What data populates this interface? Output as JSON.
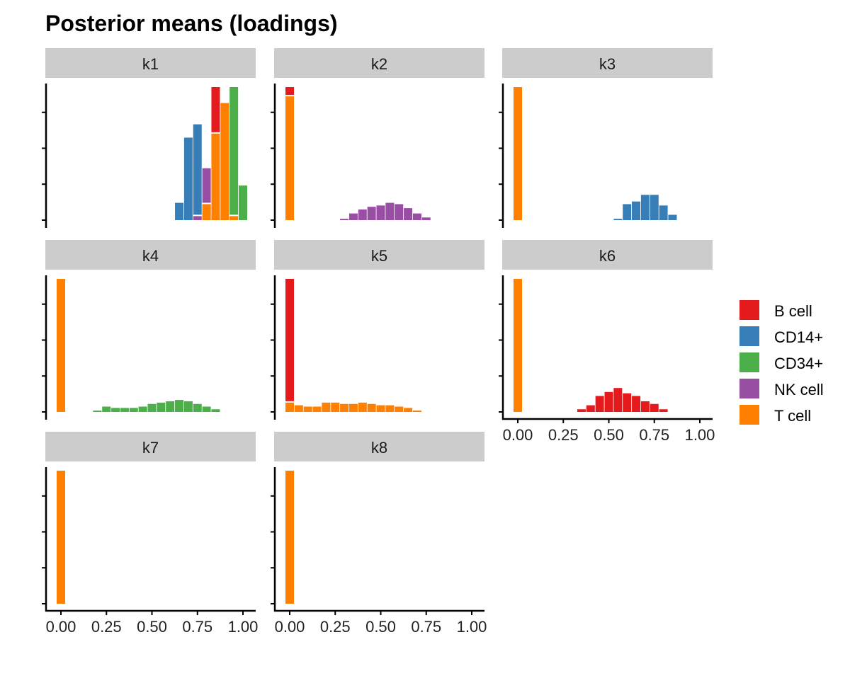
{
  "chart_data": {
    "type": "bar",
    "title": "Posterior means (loadings)",
    "xlabel": "",
    "ylabel": "",
    "xlim": [
      -0.05,
      1.05
    ],
    "bin_width": 0.05,
    "x_ticks": [
      "0.00",
      "0.25",
      "0.50",
      "0.75",
      "1.00"
    ],
    "legend": {
      "placement": "right",
      "entries": [
        {
          "name": "B cell",
          "color": "#e41a1c"
        },
        {
          "name": "CD14+",
          "color": "#377eb8"
        },
        {
          "name": "CD34+",
          "color": "#4daf4a"
        },
        {
          "name": "NK cell",
          "color": "#984ea3"
        },
        {
          "name": "T cell",
          "color": "#ff7f00"
        }
      ]
    },
    "facets": [
      {
        "name": "k1",
        "y_max": 1.0,
        "bins": [
          {
            "x": 0.65,
            "segments": [
              {
                "group": "CD14+",
                "value": 0.13
              }
            ]
          },
          {
            "x": 0.7,
            "segments": [
              {
                "group": "CD14+",
                "value": 0.62
              }
            ]
          },
          {
            "x": 0.75,
            "segments": [
              {
                "group": "NK cell",
                "value": 0.03
              },
              {
                "group": "CD14+",
                "value": 0.69
              }
            ]
          },
          {
            "x": 0.8,
            "segments": [
              {
                "group": "T cell",
                "value": 0.12
              },
              {
                "group": "NK cell",
                "value": 0.27
              }
            ]
          },
          {
            "x": 0.85,
            "segments": [
              {
                "group": "T cell",
                "value": 0.65
              },
              {
                "group": "B cell",
                "value": 0.35
              }
            ]
          },
          {
            "x": 0.9,
            "segments": [
              {
                "group": "T cell",
                "value": 0.88
              }
            ]
          },
          {
            "x": 0.95,
            "segments": [
              {
                "group": "T cell",
                "value": 0.03
              },
              {
                "group": "CD34+",
                "value": 0.97
              }
            ]
          },
          {
            "x": 1.0,
            "segments": [
              {
                "group": "CD34+",
                "value": 0.26
              }
            ]
          }
        ]
      },
      {
        "name": "k2",
        "y_max": 1.0,
        "bins": [
          {
            "x": 0.0,
            "segments": [
              {
                "group": "T cell",
                "value": 0.93
              },
              {
                "group": "B cell",
                "value": 0.07
              }
            ]
          },
          {
            "x": 0.3,
            "segments": [
              {
                "group": "NK cell",
                "value": 0.01
              }
            ]
          },
          {
            "x": 0.35,
            "segments": [
              {
                "group": "NK cell",
                "value": 0.05
              }
            ]
          },
          {
            "x": 0.4,
            "segments": [
              {
                "group": "NK cell",
                "value": 0.08
              }
            ]
          },
          {
            "x": 0.45,
            "segments": [
              {
                "group": "NK cell",
                "value": 0.1
              }
            ]
          },
          {
            "x": 0.5,
            "segments": [
              {
                "group": "NK cell",
                "value": 0.11
              }
            ]
          },
          {
            "x": 0.55,
            "segments": [
              {
                "group": "NK cell",
                "value": 0.13
              }
            ]
          },
          {
            "x": 0.6,
            "segments": [
              {
                "group": "NK cell",
                "value": 0.12
              }
            ]
          },
          {
            "x": 0.65,
            "segments": [
              {
                "group": "NK cell",
                "value": 0.09
              }
            ]
          },
          {
            "x": 0.7,
            "segments": [
              {
                "group": "NK cell",
                "value": 0.05
              }
            ]
          },
          {
            "x": 0.75,
            "segments": [
              {
                "group": "NK cell",
                "value": 0.02
              }
            ]
          }
        ]
      },
      {
        "name": "k3",
        "y_max": 1.0,
        "bins": [
          {
            "x": 0.0,
            "segments": [
              {
                "group": "T cell",
                "value": 1.0
              }
            ]
          },
          {
            "x": 0.55,
            "segments": [
              {
                "group": "CD14+",
                "value": 0.01
              }
            ]
          },
          {
            "x": 0.6,
            "segments": [
              {
                "group": "CD14+",
                "value": 0.12
              }
            ]
          },
          {
            "x": 0.65,
            "segments": [
              {
                "group": "CD14+",
                "value": 0.14
              }
            ]
          },
          {
            "x": 0.7,
            "segments": [
              {
                "group": "CD14+",
                "value": 0.19
              }
            ]
          },
          {
            "x": 0.75,
            "segments": [
              {
                "group": "CD14+",
                "value": 0.19
              }
            ]
          },
          {
            "x": 0.8,
            "segments": [
              {
                "group": "CD14+",
                "value": 0.11
              }
            ]
          },
          {
            "x": 0.85,
            "segments": [
              {
                "group": "CD14+",
                "value": 0.04
              }
            ]
          }
        ]
      },
      {
        "name": "k4",
        "y_max": 1.0,
        "bins": [
          {
            "x": 0.0,
            "segments": [
              {
                "group": "T cell",
                "value": 1.0
              }
            ]
          },
          {
            "x": 0.2,
            "segments": [
              {
                "group": "CD34+",
                "value": 0.01
              }
            ]
          },
          {
            "x": 0.25,
            "segments": [
              {
                "group": "CD34+",
                "value": 0.04
              }
            ]
          },
          {
            "x": 0.3,
            "segments": [
              {
                "group": "CD34+",
                "value": 0.03
              }
            ]
          },
          {
            "x": 0.35,
            "segments": [
              {
                "group": "CD34+",
                "value": 0.03
              }
            ]
          },
          {
            "x": 0.4,
            "segments": [
              {
                "group": "CD34+",
                "value": 0.03
              }
            ]
          },
          {
            "x": 0.45,
            "segments": [
              {
                "group": "CD34+",
                "value": 0.04
              }
            ]
          },
          {
            "x": 0.5,
            "segments": [
              {
                "group": "CD34+",
                "value": 0.06
              }
            ]
          },
          {
            "x": 0.55,
            "segments": [
              {
                "group": "CD34+",
                "value": 0.07
              }
            ]
          },
          {
            "x": 0.6,
            "segments": [
              {
                "group": "CD34+",
                "value": 0.08
              }
            ]
          },
          {
            "x": 0.65,
            "segments": [
              {
                "group": "CD34+",
                "value": 0.09
              }
            ]
          },
          {
            "x": 0.7,
            "segments": [
              {
                "group": "CD34+",
                "value": 0.08
              }
            ]
          },
          {
            "x": 0.75,
            "segments": [
              {
                "group": "CD34+",
                "value": 0.06
              }
            ]
          },
          {
            "x": 0.8,
            "segments": [
              {
                "group": "CD34+",
                "value": 0.04
              }
            ]
          },
          {
            "x": 0.85,
            "segments": [
              {
                "group": "CD34+",
                "value": 0.02
              }
            ]
          }
        ]
      },
      {
        "name": "k5",
        "y_max": 1.0,
        "bins": [
          {
            "x": 0.0,
            "segments": [
              {
                "group": "T cell",
                "value": 0.07
              },
              {
                "group": "B cell",
                "value": 0.93
              }
            ]
          },
          {
            "x": 0.05,
            "segments": [
              {
                "group": "T cell",
                "value": 0.05
              }
            ]
          },
          {
            "x": 0.1,
            "segments": [
              {
                "group": "T cell",
                "value": 0.04
              }
            ]
          },
          {
            "x": 0.15,
            "segments": [
              {
                "group": "T cell",
                "value": 0.04
              }
            ]
          },
          {
            "x": 0.2,
            "segments": [
              {
                "group": "T cell",
                "value": 0.07
              }
            ]
          },
          {
            "x": 0.25,
            "segments": [
              {
                "group": "T cell",
                "value": 0.07
              }
            ]
          },
          {
            "x": 0.3,
            "segments": [
              {
                "group": "T cell",
                "value": 0.06
              }
            ]
          },
          {
            "x": 0.35,
            "segments": [
              {
                "group": "T cell",
                "value": 0.06
              }
            ]
          },
          {
            "x": 0.4,
            "segments": [
              {
                "group": "T cell",
                "value": 0.07
              }
            ]
          },
          {
            "x": 0.45,
            "segments": [
              {
                "group": "T cell",
                "value": 0.06
              }
            ]
          },
          {
            "x": 0.5,
            "segments": [
              {
                "group": "T cell",
                "value": 0.05
              }
            ]
          },
          {
            "x": 0.55,
            "segments": [
              {
                "group": "T cell",
                "value": 0.05
              }
            ]
          },
          {
            "x": 0.6,
            "segments": [
              {
                "group": "T cell",
                "value": 0.04
              }
            ]
          },
          {
            "x": 0.65,
            "segments": [
              {
                "group": "T cell",
                "value": 0.03
              }
            ]
          },
          {
            "x": 0.7,
            "segments": [
              {
                "group": "T cell",
                "value": 0.01
              }
            ]
          }
        ]
      },
      {
        "name": "k6",
        "y_max": 1.0,
        "bins": [
          {
            "x": 0.0,
            "segments": [
              {
                "group": "T cell",
                "value": 1.0
              }
            ]
          },
          {
            "x": 0.35,
            "segments": [
              {
                "group": "B cell",
                "value": 0.02
              }
            ]
          },
          {
            "x": 0.4,
            "segments": [
              {
                "group": "B cell",
                "value": 0.05
              }
            ]
          },
          {
            "x": 0.45,
            "segments": [
              {
                "group": "B cell",
                "value": 0.12
              }
            ]
          },
          {
            "x": 0.5,
            "segments": [
              {
                "group": "B cell",
                "value": 0.15
              }
            ]
          },
          {
            "x": 0.55,
            "segments": [
              {
                "group": "B cell",
                "value": 0.18
              }
            ]
          },
          {
            "x": 0.6,
            "segments": [
              {
                "group": "B cell",
                "value": 0.14
              }
            ]
          },
          {
            "x": 0.65,
            "segments": [
              {
                "group": "B cell",
                "value": 0.12
              }
            ]
          },
          {
            "x": 0.7,
            "segments": [
              {
                "group": "B cell",
                "value": 0.08
              }
            ]
          },
          {
            "x": 0.75,
            "segments": [
              {
                "group": "B cell",
                "value": 0.06
              }
            ]
          },
          {
            "x": 0.8,
            "segments": [
              {
                "group": "B cell",
                "value": 0.02
              }
            ]
          }
        ]
      },
      {
        "name": "k7",
        "y_max": 1.0,
        "bins": [
          {
            "x": 0.0,
            "segments": [
              {
                "group": "T cell",
                "value": 1.0
              }
            ]
          }
        ]
      },
      {
        "name": "k8",
        "y_max": 1.0,
        "bins": [
          {
            "x": 0.0,
            "segments": [
              {
                "group": "T cell",
                "value": 1.0
              }
            ]
          }
        ]
      }
    ]
  }
}
